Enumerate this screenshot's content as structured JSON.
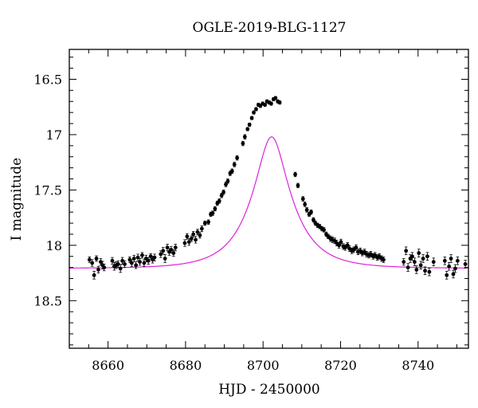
{
  "chart_data": {
    "type": "scatter",
    "title": "OGLE-2019-BLG-1127",
    "xlabel": "HJD - 2450000",
    "ylabel": "I magnitude",
    "xlim": [
      8650,
      8753
    ],
    "ylim": [
      18.93,
      16.23
    ],
    "y_inverted": true,
    "x_ticks": [
      8660,
      8680,
      8700,
      8720,
      8740
    ],
    "x_tick_labels": [
      "8660",
      "8680",
      "8700",
      "8720",
      "8740"
    ],
    "y_ticks": [
      16.5,
      17,
      17.5,
      18,
      18.5
    ],
    "y_tick_labels": [
      "16.5",
      "17",
      "17.5",
      "18",
      "18.5"
    ],
    "grid": false,
    "colors": {
      "points": "#000000",
      "model": "#e020e0"
    },
    "series": [
      {
        "kind": "data_points_with_error_bars",
        "x": [
          8655.2,
          8655.9,
          8656.4,
          8657.0,
          8657.5,
          8658.1,
          8658.6,
          8659.0,
          8661.1,
          8661.6,
          8662.1,
          8662.6,
          8663.2,
          8663.7,
          8664.3,
          8665.6,
          8666.1,
          8666.7,
          8667.2,
          8667.7,
          8668.2,
          8668.8,
          8669.3,
          8669.8,
          8670.4,
          8671.0,
          8671.5,
          8672.0,
          8673.6,
          8674.2,
          8674.7,
          8675.3,
          8675.8,
          8676.3,
          8676.9,
          8677.4,
          8679.8,
          8680.4,
          8680.9,
          8681.5,
          8682.0,
          8682.6,
          8683.1,
          8683.7,
          8684.2,
          8685.0,
          8685.9,
          8686.5,
          8687.0,
          8687.6,
          8688.2,
          8688.7,
          8689.3,
          8689.8,
          8690.4,
          8690.9,
          8691.5,
          8692.0,
          8692.6,
          8693.3,
          8694.8,
          8695.3,
          8696.0,
          8696.5,
          8697.1,
          8697.6,
          8698.2,
          8698.8,
          8699.3,
          8699.9,
          8700.5,
          8701.0,
          8701.6,
          8702.1,
          8702.7,
          8703.2,
          8703.8,
          8704.3,
          8708.3,
          8709.0,
          8710.3,
          8710.8,
          8711.3,
          8711.9,
          8712.4,
          8713.0,
          8713.5,
          8714.1,
          8714.6,
          8715.2,
          8715.7,
          8716.3,
          8716.8,
          8717.4,
          8717.9,
          8718.5,
          8719.0,
          8719.6,
          8720.1,
          8720.7,
          8721.2,
          8721.8,
          8722.3,
          8722.9,
          8723.4,
          8724.0,
          8724.5,
          8725.1,
          8725.6,
          8726.2,
          8726.7,
          8727.3,
          8727.8,
          8728.4,
          8728.9,
          8729.5,
          8730.0,
          8730.6,
          8731.1,
          8736.3,
          8736.9,
          8737.4,
          8738.0,
          8738.5,
          8739.1,
          8739.6,
          8740.2,
          8740.7,
          8741.3,
          8741.8,
          8742.4,
          8742.9,
          8744.0,
          8746.9,
          8747.4,
          8748.0,
          8748.5,
          8749.1,
          8749.6,
          8750.2,
          8752.2
        ],
        "y": [
          18.13,
          18.16,
          18.27,
          18.12,
          18.22,
          18.15,
          18.18,
          18.2,
          18.14,
          18.19,
          18.18,
          18.17,
          18.21,
          18.14,
          18.17,
          18.13,
          18.16,
          18.12,
          18.18,
          18.11,
          18.15,
          18.09,
          18.16,
          18.12,
          18.14,
          18.1,
          18.13,
          18.11,
          18.08,
          18.05,
          18.12,
          18.02,
          18.06,
          18.04,
          18.07,
          18.02,
          17.98,
          17.92,
          17.97,
          17.94,
          17.9,
          17.95,
          17.88,
          17.91,
          17.85,
          17.8,
          17.79,
          17.72,
          17.71,
          17.67,
          17.62,
          17.6,
          17.55,
          17.52,
          17.45,
          17.42,
          17.35,
          17.33,
          17.27,
          17.21,
          17.08,
          17.02,
          16.95,
          16.91,
          16.85,
          16.8,
          16.77,
          16.73,
          16.74,
          16.72,
          16.73,
          16.7,
          16.71,
          16.72,
          16.68,
          16.67,
          16.7,
          16.71,
          17.36,
          17.46,
          17.58,
          17.63,
          17.68,
          17.72,
          17.7,
          17.77,
          17.8,
          17.82,
          17.83,
          17.85,
          17.86,
          17.9,
          17.92,
          17.94,
          17.95,
          17.96,
          17.98,
          18.0,
          17.97,
          18.01,
          18.02,
          18.0,
          18.03,
          18.05,
          18.04,
          18.02,
          18.06,
          18.05,
          18.07,
          18.06,
          18.08,
          18.09,
          18.08,
          18.1,
          18.09,
          18.11,
          18.1,
          18.12,
          18.13,
          18.15,
          18.05,
          18.2,
          18.12,
          18.1,
          18.15,
          18.22,
          18.07,
          18.18,
          18.12,
          18.23,
          18.1,
          18.24,
          18.15,
          18.14,
          18.27,
          18.19,
          18.12,
          18.26,
          18.21,
          18.14,
          18.17
        ],
        "err": [
          0.025,
          0.03,
          0.035,
          0.025,
          0.03,
          0.03,
          0.035,
          0.03,
          0.03,
          0.035,
          0.03,
          0.03,
          0.035,
          0.03,
          0.03,
          0.025,
          0.03,
          0.03,
          0.03,
          0.03,
          0.03,
          0.025,
          0.03,
          0.03,
          0.03,
          0.025,
          0.03,
          0.03,
          0.03,
          0.03,
          0.035,
          0.03,
          0.03,
          0.03,
          0.03,
          0.03,
          0.03,
          0.025,
          0.03,
          0.025,
          0.025,
          0.03,
          0.025,
          0.025,
          0.025,
          0.02,
          0.02,
          0.02,
          0.02,
          0.02,
          0.02,
          0.02,
          0.02,
          0.02,
          0.02,
          0.02,
          0.02,
          0.02,
          0.02,
          0.02,
          0.02,
          0.02,
          0.015,
          0.015,
          0.015,
          0.015,
          0.015,
          0.015,
          0.015,
          0.015,
          0.015,
          0.015,
          0.015,
          0.015,
          0.015,
          0.015,
          0.015,
          0.015,
          0.02,
          0.02,
          0.02,
          0.02,
          0.02,
          0.02,
          0.02,
          0.02,
          0.02,
          0.02,
          0.02,
          0.02,
          0.02,
          0.02,
          0.02,
          0.025,
          0.025,
          0.025,
          0.025,
          0.025,
          0.025,
          0.025,
          0.025,
          0.025,
          0.025,
          0.025,
          0.025,
          0.025,
          0.025,
          0.025,
          0.025,
          0.025,
          0.025,
          0.025,
          0.025,
          0.025,
          0.025,
          0.025,
          0.025,
          0.025,
          0.025,
          0.03,
          0.035,
          0.035,
          0.035,
          0.035,
          0.035,
          0.035,
          0.035,
          0.035,
          0.035,
          0.035,
          0.035,
          0.035,
          0.035,
          0.035,
          0.035,
          0.035,
          0.035,
          0.035,
          0.035,
          0.035,
          0.035
        ]
      },
      {
        "kind": "model_curve",
        "t0": 8702.2,
        "u0": 0.35,
        "tE": 10.0,
        "baseline_mag": 18.208
      }
    ]
  }
}
